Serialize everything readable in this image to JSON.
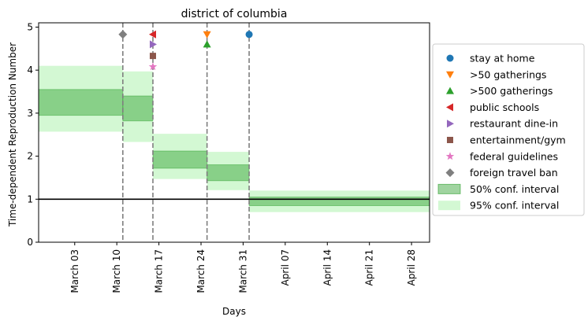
{
  "chart_data": {
    "type": "step-interval",
    "title": "district of columbia",
    "xlabel": "Days",
    "ylabel": "Time-dependent Reproduction Number",
    "xlim": [
      "2020-02-26",
      "2020-05-01"
    ],
    "ylim": [
      0,
      5.1
    ],
    "x_ticks": [
      "2020-03-03",
      "2020-03-10",
      "2020-03-17",
      "2020-03-24",
      "2020-03-31",
      "2020-04-07",
      "2020-04-14",
      "2020-04-21",
      "2020-04-28"
    ],
    "x_tick_labels": [
      "March 03",
      "March 10",
      "March 17",
      "March 24",
      "March 31",
      "April 07",
      "April 14",
      "April 21",
      "April 28"
    ],
    "y_ticks": [
      0,
      1,
      2,
      3,
      4,
      5
    ],
    "reference_line": 1,
    "segments": [
      {
        "start": "2020-02-26",
        "end": "2020-03-11",
        "ci50": [
          2.95,
          3.55
        ],
        "ci95": [
          2.57,
          4.1
        ]
      },
      {
        "start": "2020-03-11",
        "end": "2020-03-16",
        "ci50": [
          2.82,
          3.4
        ],
        "ci95": [
          2.33,
          3.97
        ]
      },
      {
        "start": "2020-03-16",
        "end": "2020-03-25",
        "ci50": [
          1.72,
          2.12
        ],
        "ci95": [
          1.47,
          2.52
        ]
      },
      {
        "start": "2020-03-25",
        "end": "2020-04-01",
        "ci50": [
          1.43,
          1.8
        ],
        "ci95": [
          1.21,
          2.1
        ]
      },
      {
        "start": "2020-04-01",
        "end": "2020-05-01",
        "ci50": [
          0.85,
          1.05
        ],
        "ci95": [
          0.7,
          1.2
        ]
      }
    ],
    "intervention_lines": [
      "2020-03-11",
      "2020-03-16",
      "2020-03-25",
      "2020-04-01"
    ],
    "interventions": [
      {
        "name": "stay at home",
        "date": "2020-04-01",
        "y": 4.83,
        "marker": "circle",
        "color": "#1f77b4"
      },
      {
        "name": ">50 gatherings",
        "date": "2020-03-25",
        "y": 4.83,
        "marker": "triangle-down",
        "color": "#ff7f0e"
      },
      {
        "name": ">500 gatherings",
        "date": "2020-03-25",
        "y": 4.6,
        "marker": "triangle-up",
        "color": "#2ca02c"
      },
      {
        "name": "public schools",
        "date": "2020-03-16",
        "y": 4.83,
        "marker": "triangle-left",
        "color": "#d62728"
      },
      {
        "name": "restaurant dine-in",
        "date": "2020-03-16",
        "y": 4.6,
        "marker": "triangle-right",
        "color": "#9467bd"
      },
      {
        "name": "entertainment/gym",
        "date": "2020-03-16",
        "y": 4.33,
        "marker": "square",
        "color": "#8c564b"
      },
      {
        "name": "federal guidelines",
        "date": "2020-03-16",
        "y": 4.08,
        "marker": "star",
        "color": "#e377c2"
      },
      {
        "name": "foreign travel ban",
        "date": "2020-03-11",
        "y": 4.83,
        "marker": "diamond",
        "color": "#7f7f7f"
      }
    ],
    "legend": {
      "placement": "right",
      "entries": [
        {
          "label": "stay at home",
          "marker": "circle",
          "color": "#1f77b4"
        },
        {
          "label": ">50 gatherings",
          "marker": "triangle-down",
          "color": "#ff7f0e"
        },
        {
          "label": ">500 gatherings",
          "marker": "triangle-up",
          "color": "#2ca02c"
        },
        {
          "label": "public schools",
          "marker": "triangle-left",
          "color": "#d62728"
        },
        {
          "label": "restaurant dine-in",
          "marker": "triangle-right",
          "color": "#9467bd"
        },
        {
          "label": "entertainment/gym",
          "marker": "square",
          "color": "#8c564b"
        },
        {
          "label": "federal guidelines",
          "marker": "star",
          "color": "#e377c2"
        },
        {
          "label": "foreign travel ban",
          "marker": "diamond",
          "color": "#7f7f7f"
        },
        {
          "label": "50% conf. interval",
          "marker": "patch50",
          "color": "#2ca02c"
        },
        {
          "label": "95% conf. interval",
          "marker": "patch95",
          "color": "#90ee90"
        }
      ]
    },
    "colors": {
      "ci50": "#2ca02c",
      "ci95": "#90ee90",
      "vline": "#7f7f7f",
      "refline": "#000000"
    }
  }
}
